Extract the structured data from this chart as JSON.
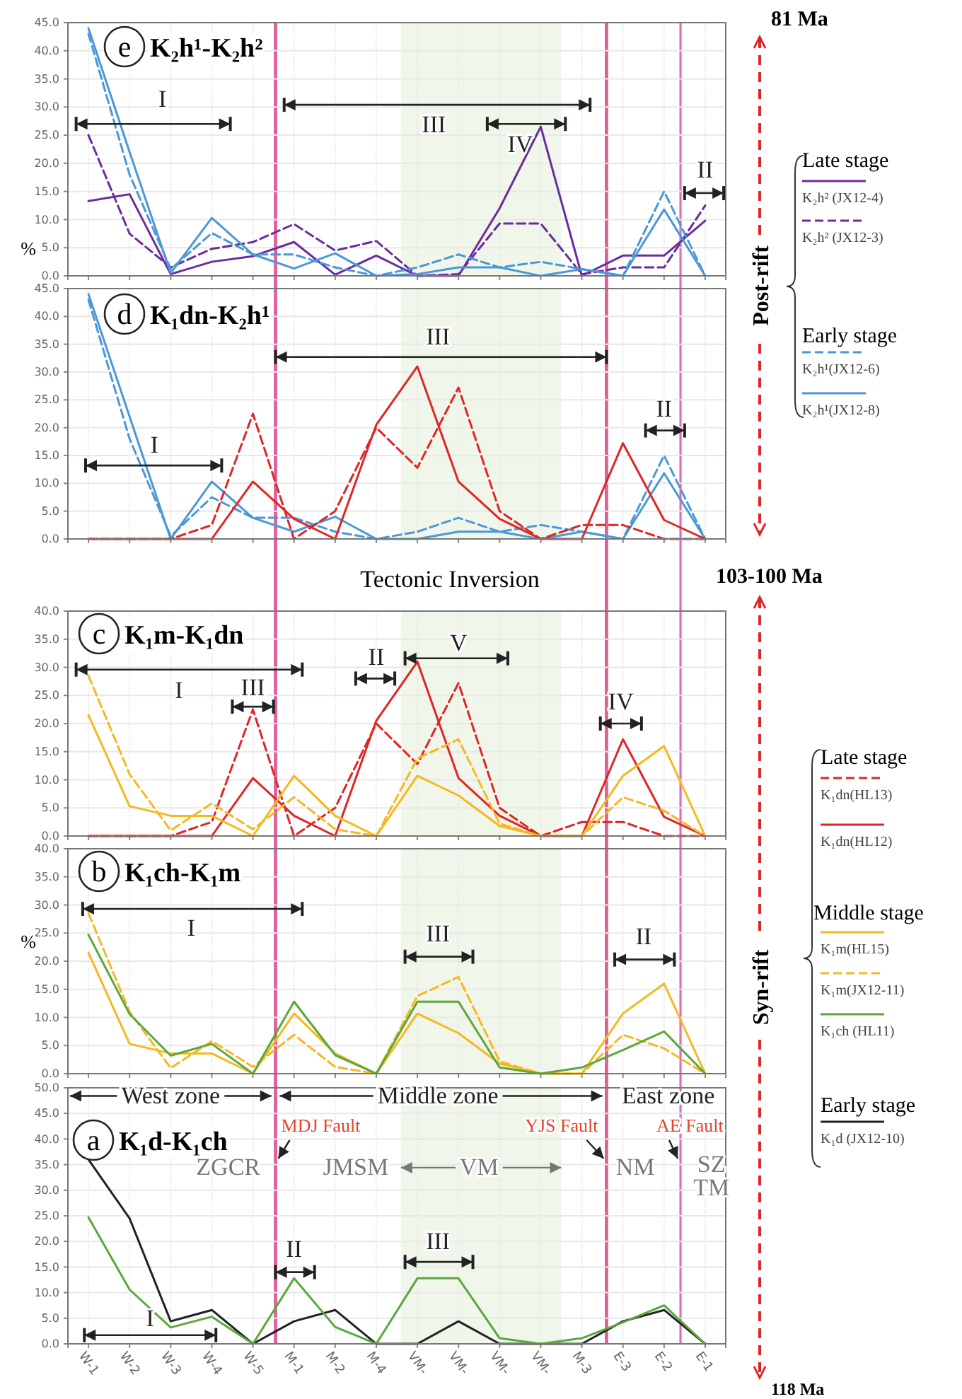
{
  "chart_data": [
    {
      "type": "line",
      "title": "K₂h¹-K₂h²",
      "ylabel": "%",
      "grid": true,
      "legend": "right",
      "tick_labels": "y",
      "categories": [
        null,
        null,
        null,
        null,
        null,
        null,
        null,
        null,
        null,
        null,
        null,
        null,
        null,
        null,
        null,
        null
      ],
      "ylim": [
        0,
        45
      ],
      "yticks": [
        {
          "value": 0,
          "label": "0.0"
        },
        {
          "value": 5,
          "label": "5.0"
        },
        {
          "value": 10,
          "label": "10.0"
        },
        {
          "value": 15,
          "label": "15.0"
        },
        {
          "value": 20,
          "label": "20.0"
        },
        {
          "value": 25,
          "label": "25.0"
        },
        {
          "value": 30,
          "label": "30.0"
        },
        {
          "value": 35,
          "label": "35.0"
        },
        {
          "value": 40,
          "label": "40.0"
        },
        {
          "value": 45,
          "label": "45.0"
        }
      ],
      "series": [
        {
          "name": "K₂h² (JX12-4)",
          "color": "#6a2c9e",
          "line_style": "solid",
          "values": [
            13.3,
            14.5,
            0.3,
            2.5,
            3.5,
            6.0,
            0.2,
            3.6,
            0,
            0,
            12,
            26.5,
            0,
            3.6,
            3.6,
            9.8
          ]
        },
        {
          "name": "K₂h² (JX12-3)",
          "color": "#6a2c9e",
          "line_style": "dashed",
          "values": [
            25,
            7.5,
            1.5,
            4.8,
            6.0,
            9.2,
            4.5,
            6.2,
            0,
            0.3,
            9.3,
            9.3,
            0.3,
            1.5,
            1.5,
            12.5
          ]
        },
        {
          "name": "K₂h¹(JX12-6)",
          "color": "#4a98d8",
          "line_style": "dashed",
          "values": [
            43,
            18,
            1.2,
            7.6,
            3.8,
            3.8,
            1.5,
            0,
            1.5,
            3.8,
            1.5,
            2.5,
            1.2,
            0,
            15,
            0
          ]
        },
        {
          "name": "K₂h¹(JX12-8)",
          "color": "#4a98d8",
          "line_style": "solid",
          "values": [
            44,
            22,
            0.5,
            10.3,
            3.8,
            1.3,
            4.0,
            0,
            0.3,
            1.5,
            1.5,
            0,
            1.2,
            0,
            11.8,
            0
          ]
        }
      ],
      "annotations": [
        "e",
        "I",
        "III",
        "IV",
        "II",
        "81 Ma",
        "Post-rift",
        "Late stage",
        "Early stage"
      ]
    },
    {
      "type": "line",
      "title": "K₁dn-K₂h¹",
      "grid": true,
      "tick_labels": "y",
      "categories": [
        null,
        null,
        null,
        null,
        null,
        null,
        null,
        null,
        null,
        null,
        null,
        null,
        null,
        null,
        null,
        null
      ],
      "ylim": [
        0,
        45
      ],
      "yticks": [
        {
          "value": 0,
          "label": "0.0"
        },
        {
          "value": 5,
          "label": "5.0"
        },
        {
          "value": 10,
          "label": "10.0"
        },
        {
          "value": 15,
          "label": "15.0"
        },
        {
          "value": 20,
          "label": "20.0"
        },
        {
          "value": 25,
          "label": "25.0"
        },
        {
          "value": 30,
          "label": "30.0"
        },
        {
          "value": 35,
          "label": "35.0"
        },
        {
          "value": 40,
          "label": "40.0"
        },
        {
          "value": 45,
          "label": "45.0"
        }
      ],
      "series": [
        {
          "color": "#4a98d8",
          "line_style": "dashed",
          "values": [
            43,
            18,
            0.5,
            7.5,
            3.8,
            3.8,
            1.3,
            0,
            1.3,
            3.8,
            1.3,
            2.5,
            1.3,
            0,
            15,
            0
          ]
        },
        {
          "color": "#4a98d8",
          "line_style": "solid",
          "values": [
            44,
            22,
            0,
            10.3,
            3.8,
            1.3,
            4.0,
            0,
            0,
            1.3,
            1.3,
            0,
            1.3,
            0,
            11.8,
            0
          ]
        },
        {
          "color": "#e02525",
          "line_style": "dashed",
          "values": [
            0,
            0,
            0,
            2.5,
            22.5,
            0,
            5,
            20,
            12.8,
            27.2,
            5,
            0,
            2.5,
            2.5,
            0,
            0
          ]
        },
        {
          "color": "#e02525",
          "line_style": "solid",
          "values": [
            0,
            0,
            0,
            0,
            10.3,
            3.6,
            0,
            20.5,
            31,
            10.3,
            3.6,
            0,
            0,
            17.2,
            3.4,
            0
          ]
        }
      ],
      "annotations": [
        "d",
        "I",
        "III",
        "II",
        "Tectonic Inversion",
        "103-100 Ma"
      ]
    },
    {
      "type": "line",
      "title": "K₁m-K₁dn",
      "grid": true,
      "legend": "right",
      "tick_labels": "y",
      "categories": [
        null,
        null,
        null,
        null,
        null,
        null,
        null,
        null,
        null,
        null,
        null,
        null,
        null,
        null,
        null,
        null
      ],
      "ylim": [
        0,
        40
      ],
      "yticks": [
        {
          "value": 0,
          "label": "0.0"
        },
        {
          "value": 5,
          "label": "5.0"
        },
        {
          "value": 10,
          "label": "10.0"
        },
        {
          "value": 15,
          "label": "15.0"
        },
        {
          "value": 20,
          "label": "20.0"
        },
        {
          "value": 25,
          "label": "25.0"
        },
        {
          "value": 30,
          "label": "30.0"
        },
        {
          "value": 35,
          "label": "35.0"
        },
        {
          "value": 40,
          "label": "40.0"
        }
      ],
      "series": [
        {
          "name": "K₁dn(HL13)",
          "color": "#e02525",
          "line_style": "dashed",
          "values": [
            0,
            0,
            0,
            2.5,
            22.5,
            0,
            5,
            20,
            12.8,
            27.2,
            5,
            0,
            2.5,
            2.5,
            0,
            0
          ]
        },
        {
          "name": "K₁dn(HL12)",
          "color": "#e02525",
          "line_style": "solid",
          "values": [
            0,
            0,
            0,
            0,
            10.3,
            3.6,
            0,
            20.5,
            31,
            10.3,
            3.6,
            0,
            0,
            17.2,
            3.4,
            0
          ]
        },
        {
          "name": "K₁m(HL15)",
          "color": "#f5b820",
          "line_style": "solid",
          "values": [
            21.5,
            5.3,
            3.6,
            3.6,
            0,
            10.7,
            3.6,
            0,
            10.7,
            7.2,
            1.8,
            0,
            0,
            10.7,
            16,
            0
          ]
        },
        {
          "name": "K₁m(JX12-11)",
          "color": "#f5b820",
          "line_style": "dashed",
          "values": [
            28.5,
            11,
            1,
            5.8,
            1.2,
            6.9,
            1.2,
            0,
            13.8,
            17.2,
            2.2,
            0,
            0,
            6.9,
            4.5,
            0
          ]
        }
      ],
      "annotations": [
        "c",
        "I",
        "III",
        "II",
        "V",
        "IV",
        "Syn-rift",
        "Late stage",
        "Middle stage"
      ]
    },
    {
      "type": "line",
      "title": "K₁ch-K₁m",
      "ylabel": "%",
      "grid": true,
      "legend": "right",
      "tick_labels": "y",
      "categories": [
        null,
        null,
        null,
        null,
        null,
        null,
        null,
        null,
        null,
        null,
        null,
        null,
        null,
        null,
        null,
        null
      ],
      "ylim": [
        0,
        40
      ],
      "yticks": [
        {
          "value": 0,
          "label": "0.0"
        },
        {
          "value": 5,
          "label": "5.0"
        },
        {
          "value": 10,
          "label": "10.0"
        },
        {
          "value": 15,
          "label": "15.0"
        },
        {
          "value": 20,
          "label": "20.0"
        },
        {
          "value": 25,
          "label": "25.0"
        },
        {
          "value": 30,
          "label": "30.0"
        },
        {
          "value": 35,
          "label": "35.0"
        },
        {
          "value": 40,
          "label": "40.0"
        }
      ],
      "series": [
        {
          "color": "#f5b820",
          "line_style": "solid",
          "values": [
            21.5,
            5.3,
            3.6,
            3.6,
            0,
            10.7,
            3.6,
            0,
            10.7,
            7.2,
            1.8,
            0,
            0,
            10.7,
            16,
            0
          ]
        },
        {
          "color": "#f5b820",
          "line_style": "dashed",
          "values": [
            28.5,
            11,
            1,
            5.8,
            1.2,
            6.9,
            1.2,
            0,
            13.8,
            17.2,
            2.2,
            0,
            0,
            6.9,
            4.5,
            0
          ]
        },
        {
          "name": "K₁ch (HL11)",
          "color": "#5aa83c",
          "line_style": "solid",
          "values": [
            24.7,
            10.6,
            3.2,
            5.3,
            0,
            12.8,
            3.3,
            0,
            12.8,
            12.8,
            1.1,
            0,
            1.1,
            4.2,
            7.5,
            0
          ]
        }
      ],
      "annotations": [
        "b",
        "I",
        "III",
        "II"
      ]
    },
    {
      "type": "line",
      "title": "K₁d-K₁ch",
      "grid": true,
      "legend": "right",
      "categories": [
        "W-1",
        "W-2",
        "W-3",
        "W-4",
        "W-5",
        "M-1",
        "M-2",
        "M-4",
        "VM-",
        "VM-",
        "VM-",
        "VM-",
        "M-3",
        "E-3",
        "E-2",
        "E-1"
      ],
      "ylim": [
        0,
        50
      ],
      "yticks": [
        {
          "value": 0,
          "label": "0.0"
        },
        {
          "value": 5,
          "label": "5.0"
        },
        {
          "value": 10,
          "label": "10.0"
        },
        {
          "value": 15,
          "label": "15.0"
        },
        {
          "value": 20,
          "label": "20.0"
        },
        {
          "value": 25,
          "label": "25.0"
        },
        {
          "value": 30,
          "label": "30.0"
        },
        {
          "value": 35,
          "label": "35.0"
        },
        {
          "value": 40,
          "label": "40.0"
        },
        {
          "value": 45,
          "label": "45.0"
        },
        {
          "value": 50,
          "label": "50.0"
        }
      ],
      "series": [
        {
          "name": "K₁d (JX12-10)",
          "color": "#222222",
          "line_style": "solid",
          "values": [
            36,
            24.5,
            4.4,
            6.6,
            0,
            4.4,
            6.6,
            0,
            0,
            4.4,
            0,
            0,
            0,
            4.4,
            6.6,
            0
          ]
        },
        {
          "color": "#5aa83c",
          "line_style": "solid",
          "values": [
            24.7,
            10.6,
            3.2,
            5.3,
            0,
            12.8,
            3.3,
            0,
            12.8,
            12.8,
            1.1,
            0,
            1.1,
            4.2,
            7.5,
            0
          ]
        }
      ],
      "annotations": [
        "a",
        "I",
        "II",
        "III",
        "West zone",
        "Middle zone",
        "East zone",
        "ZGCR",
        "JMSM",
        "VM",
        "NM",
        "SZ",
        "TM",
        "Early stage",
        "118 Ma",
        "MDJ Fault",
        "YJS Fault",
        "AE Fault"
      ]
    }
  ]
}
